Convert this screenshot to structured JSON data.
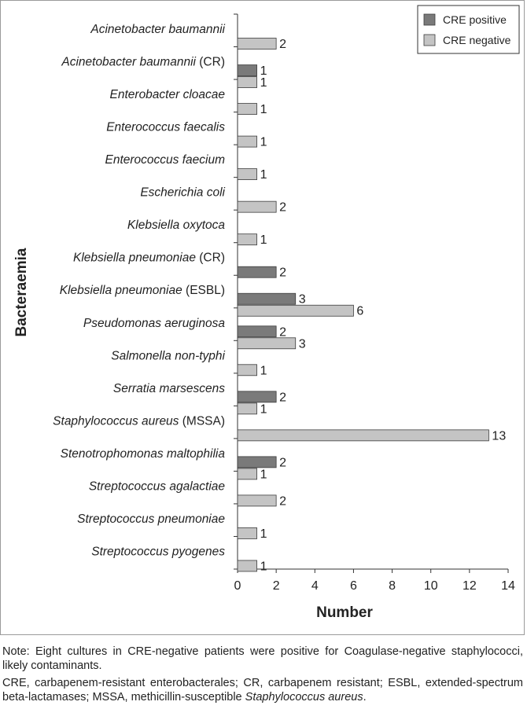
{
  "chart_data": {
    "type": "bar",
    "orientation": "horizontal",
    "title": "",
    "xlabel": "Number",
    "ylabel": "Bacteraemia",
    "xlim": [
      0,
      14
    ],
    "xticks": [
      0,
      2,
      4,
      6,
      8,
      10,
      12,
      14
    ],
    "grid": false,
    "legend_position": "top-right",
    "categories": [
      {
        "name": "Acinetobacter baumannii",
        "suffix": ""
      },
      {
        "name": "Acinetobacter baumannii",
        "suffix": "(CR)"
      },
      {
        "name": "Enterobacter cloacae",
        "suffix": ""
      },
      {
        "name": "Enterococcus faecalis",
        "suffix": ""
      },
      {
        "name": "Enterococcus faecium",
        "suffix": ""
      },
      {
        "name": "Escherichia coli",
        "suffix": ""
      },
      {
        "name": "Klebsiella oxytoca",
        "suffix": ""
      },
      {
        "name": "Klebsiella pneumoniae",
        "suffix": "(CR)"
      },
      {
        "name": "Klebsiella pneumoniae",
        "suffix": "(ESBL)"
      },
      {
        "name": "Pseudomonas aeruginosa",
        "suffix": ""
      },
      {
        "name": "Salmonella non-typhi",
        "suffix": ""
      },
      {
        "name": "Serratia marsescens",
        "suffix": ""
      },
      {
        "name": "Staphylococcus aureus",
        "suffix": "(MSSA)"
      },
      {
        "name": "Stenotrophomonas maltophilia",
        "suffix": ""
      },
      {
        "name": "Streptococcus agalactiae",
        "suffix": ""
      },
      {
        "name": "Streptococcus pneumoniae",
        "suffix": ""
      },
      {
        "name": "Streptococcus pyogenes",
        "suffix": ""
      }
    ],
    "series": [
      {
        "name": "CRE positive",
        "color": "#7a7a7a",
        "values": [
          null,
          1,
          null,
          null,
          null,
          null,
          null,
          2,
          3,
          2,
          null,
          2,
          null,
          2,
          null,
          null,
          null
        ]
      },
      {
        "name": "CRE negative",
        "color": "#c4c4c4",
        "values": [
          2,
          1,
          1,
          1,
          1,
          2,
          1,
          null,
          6,
          3,
          1,
          1,
          13,
          1,
          2,
          1,
          1
        ]
      }
    ],
    "data_labels": [
      [
        "",
        "1",
        "",
        "",
        "",
        "",
        "",
        "2",
        "3",
        "2",
        "",
        "2",
        "",
        "2",
        "",
        "",
        ""
      ],
      [
        "2",
        "1",
        "1",
        "1",
        "1",
        "2",
        "1",
        "",
        "6",
        "3",
        "1",
        "1",
        "13",
        "1",
        "2",
        "1",
        "1"
      ]
    ]
  },
  "notes": {
    "note_line": "Note: Eight cultures in CRE-negative patients were positive for Coagulase-negative staphylococci, likely contaminants.",
    "abbrev_prefix": "CRE, carbapenem-resistant enterobacterales; CR, carbapenem resistant; ESBL, extended-spectrum beta-lactamases; MSSA, methicillin-susceptible ",
    "abbrev_italic": "Staphylococcus aureus",
    "abbrev_suffix": "."
  }
}
